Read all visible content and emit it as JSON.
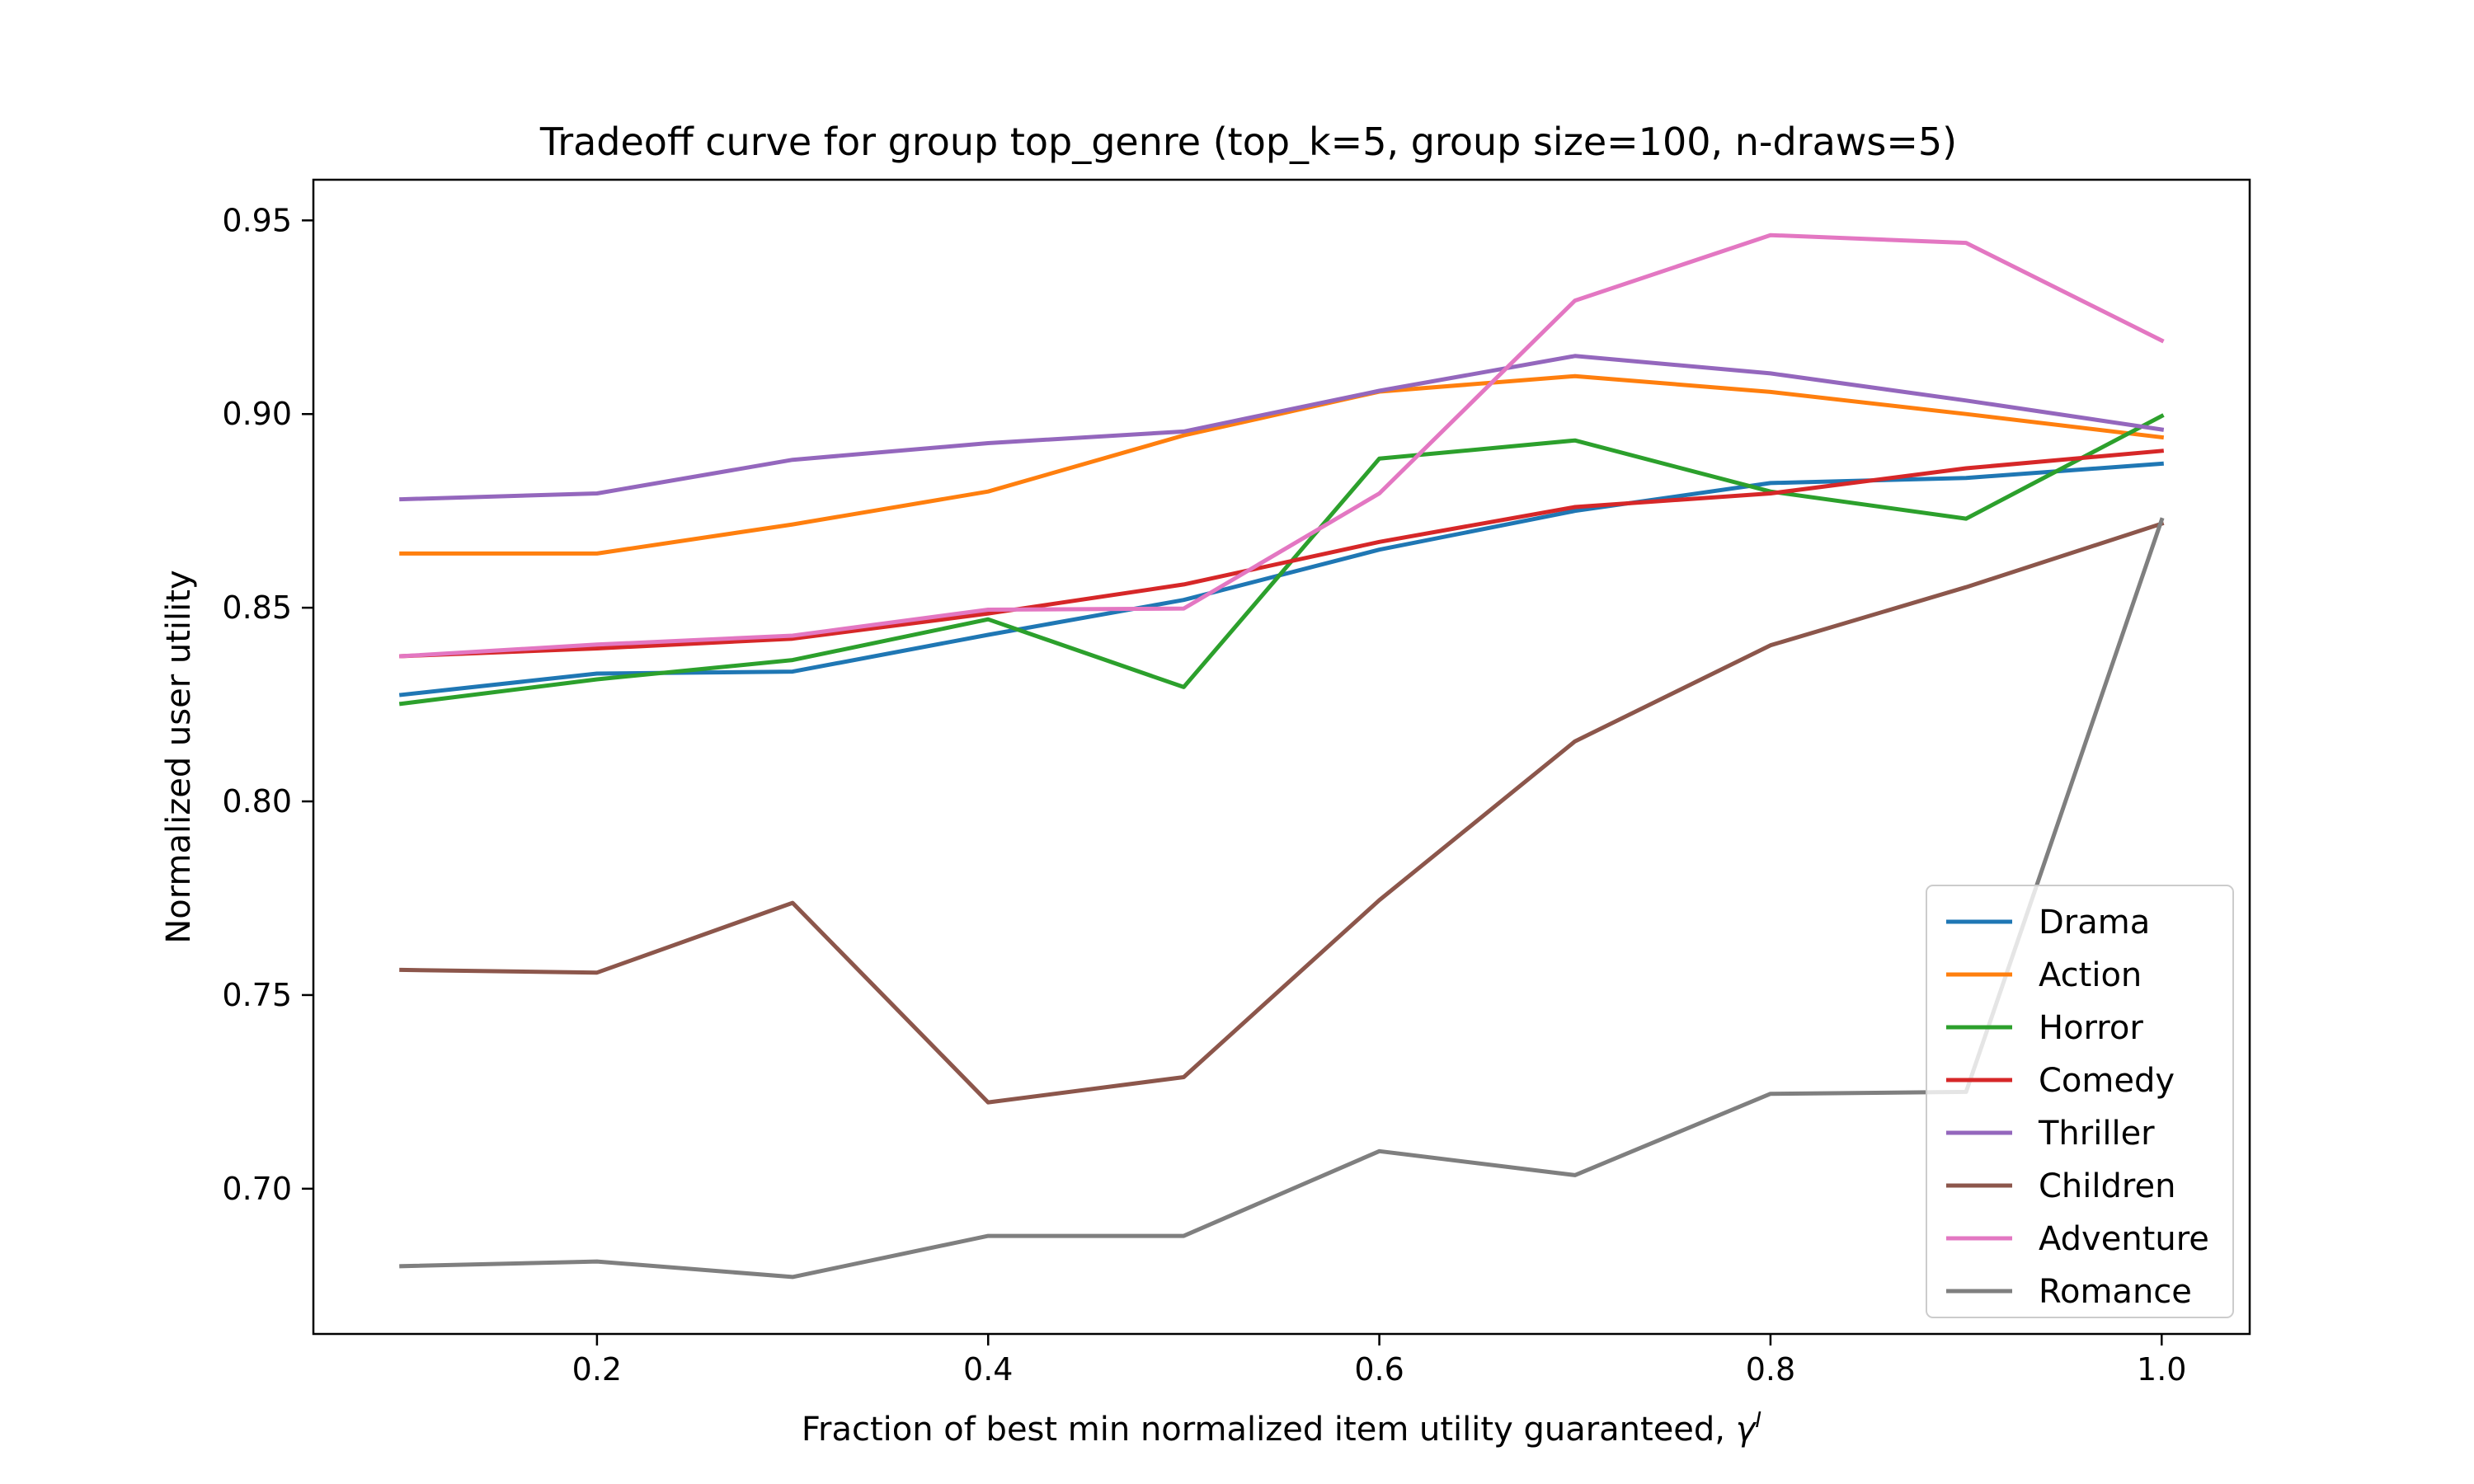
{
  "chart_data": {
    "type": "line",
    "title": "Tradeoff curve for group top_genre (top_k=5, group size=100, n-draws=5)",
    "xlabel": "Fraction of best min normalized item utility guaranteed, ",
    "xlabel_symbol": "γ",
    "xlabel_superscript": "I",
    "ylabel": "Normalized user utility",
    "x": [
      0.1,
      0.2,
      0.3,
      0.4,
      0.5,
      0.6,
      0.7,
      0.8,
      0.9,
      1.0
    ],
    "xlim": [
      0.055,
      1.045
    ],
    "ylim": [
      0.6625,
      0.9605
    ],
    "xticks": [
      0.2,
      0.4,
      0.6,
      0.8,
      1.0
    ],
    "xtick_labels": [
      "0.2",
      "0.4",
      "0.6",
      "0.8",
      "1.0"
    ],
    "yticks": [
      0.7,
      0.75,
      0.8,
      0.85,
      0.9,
      0.95
    ],
    "ytick_labels": [
      "0.70",
      "0.75",
      "0.80",
      "0.85",
      "0.90",
      "0.95"
    ],
    "grid": false,
    "legend_position": "lower-right",
    "series": [
      {
        "name": "Drama",
        "color": "#1f77b4",
        "values": [
          0.8275,
          0.833,
          0.8335,
          0.843,
          0.852,
          0.865,
          0.875,
          0.8822,
          0.8835,
          0.8872
        ]
      },
      {
        "name": "Action",
        "color": "#ff7f0e",
        "values": [
          0.864,
          0.864,
          0.8715,
          0.88,
          0.8945,
          0.9058,
          0.9098,
          0.9057,
          0.9,
          0.894
        ]
      },
      {
        "name": "Horror",
        "color": "#2ca02c",
        "values": [
          0.8252,
          0.8315,
          0.8365,
          0.847,
          0.8295,
          0.8885,
          0.8932,
          0.88,
          0.873,
          0.8995
        ]
      },
      {
        "name": "Comedy",
        "color": "#d62728",
        "values": [
          0.8375,
          0.8395,
          0.842,
          0.8485,
          0.856,
          0.867,
          0.876,
          0.8795,
          0.886,
          0.8905
        ]
      },
      {
        "name": "Thriller",
        "color": "#9467bd",
        "values": [
          0.878,
          0.8795,
          0.8882,
          0.8925,
          0.8955,
          0.906,
          0.915,
          0.9105,
          0.9035,
          0.896
        ]
      },
      {
        "name": "Children",
        "color": "#8c564b",
        "values": [
          0.7565,
          0.7558,
          0.7738,
          0.7223,
          0.7288,
          0.7745,
          0.8155,
          0.8403,
          0.8553,
          0.8717
        ]
      },
      {
        "name": "Adventure",
        "color": "#e377c2",
        "values": [
          0.8375,
          0.8405,
          0.8428,
          0.8495,
          0.8498,
          0.8795,
          0.9293,
          0.9462,
          0.9442,
          0.919
        ]
      },
      {
        "name": "Romance",
        "color": "#7f7f7f",
        "values": [
          0.68,
          0.6812,
          0.6772,
          0.6878,
          0.6878,
          0.7097,
          0.7035,
          0.7245,
          0.725,
          0.8727
        ]
      }
    ]
  }
}
